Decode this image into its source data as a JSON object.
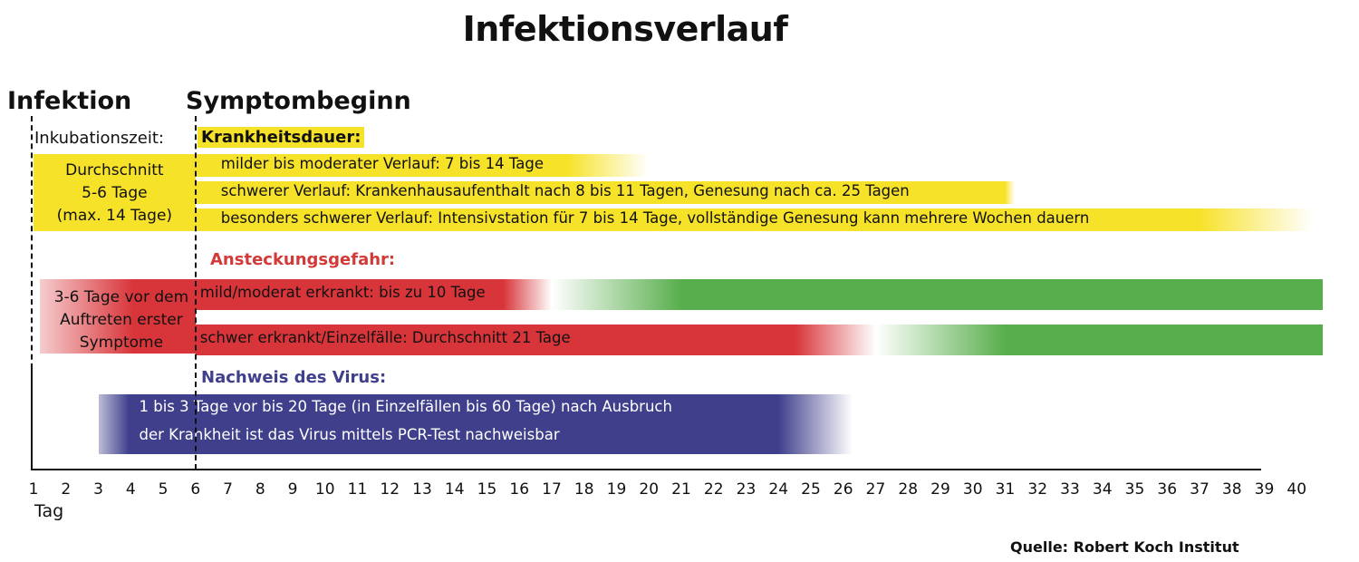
{
  "chart_data": {
    "type": "gantt-timeline",
    "title": "Infektionsverlauf",
    "xlabel": "Tag",
    "x_ticks": [
      "1",
      "2",
      "3",
      "4",
      "5",
      "6",
      "7",
      "8",
      "9",
      "10",
      "11",
      "12",
      "13",
      "14",
      "15",
      "16",
      "17",
      "18",
      "19",
      "20",
      "21",
      "22",
      "23",
      "24",
      "25",
      "26",
      "27",
      "28",
      "29",
      "30",
      "31",
      "32",
      "33",
      "34",
      "35",
      "36",
      "37",
      "38",
      "39",
      "40"
    ],
    "markers": {
      "infection_label": "Infektion",
      "infection_day": 1,
      "symptom_label": "Symptombeginn",
      "symptom_day": 6
    },
    "sections": {
      "incubation": {
        "label": "Inkubationszeit:",
        "box_lines": [
          "Durchschnitt",
          "5-6 Tage",
          "(max. 14 Tage)"
        ],
        "start_day": 1,
        "end_day": 6,
        "color": "#f7e22a"
      },
      "illness": {
        "label": "Krankheitsdauer:",
        "color": "#f7e22a",
        "bars": [
          {
            "label": "milder bis moderater Verlauf: 7 bis 14 Tage",
            "start_day": 6,
            "solid_until_day": 17.5,
            "end_day": 20
          },
          {
            "label": "schwerer Verlauf: Krankenhausaufenthalt nach 8 bis 11 Tagen, Genesung nach ca. 25 Tagen",
            "start_day": 6,
            "solid_until_day": 31,
            "end_day": 31.3
          },
          {
            "label": "besonders schwerer Verlauf: Intensivstation für 7 bis 14 Tage, vollständige Genesung kann mehrere Wochen dauern",
            "start_day": 6,
            "solid_until_day": 37,
            "end_day": 40.5
          }
        ]
      },
      "contagion": {
        "label": "Ansteckungsgefahr:",
        "box_lines": [
          "3-6 Tage vor dem",
          "Auftreten erster",
          "Symptome"
        ],
        "pre_start_day": 1.2,
        "danger_color": "#d8353a",
        "safe_color": "#58ae4c",
        "bars": [
          {
            "label": "mild/moderat erkrankt: bis zu 10 Tage",
            "start_day": 6,
            "red_solid_until": 15.5,
            "fade_end": 17,
            "green_start": 17,
            "green_solid_from": 21,
            "end_day": 40.8
          },
          {
            "label": "schwer erkrankt/Einzelfälle: Durchschnitt 21 Tage",
            "start_day": 6,
            "red_solid_until": 24.5,
            "fade_end": 27,
            "green_start": 27,
            "green_solid_from": 31,
            "end_day": 40.8
          }
        ]
      },
      "detection": {
        "label": "Nachweis des Virus:",
        "color": "#3f3f8c",
        "lines": [
          "1 bis 3 Tage vor bis 20 Tage (in Einzelfällen bis 60 Tage) nach Ausbruch",
          "der Krankheit ist das Virus mittels PCR-Test nachweisbar"
        ],
        "start_day": 3,
        "solid_until_day": 24,
        "end_day": 26.3
      }
    },
    "source": "Quelle: Robert Koch Institut"
  }
}
